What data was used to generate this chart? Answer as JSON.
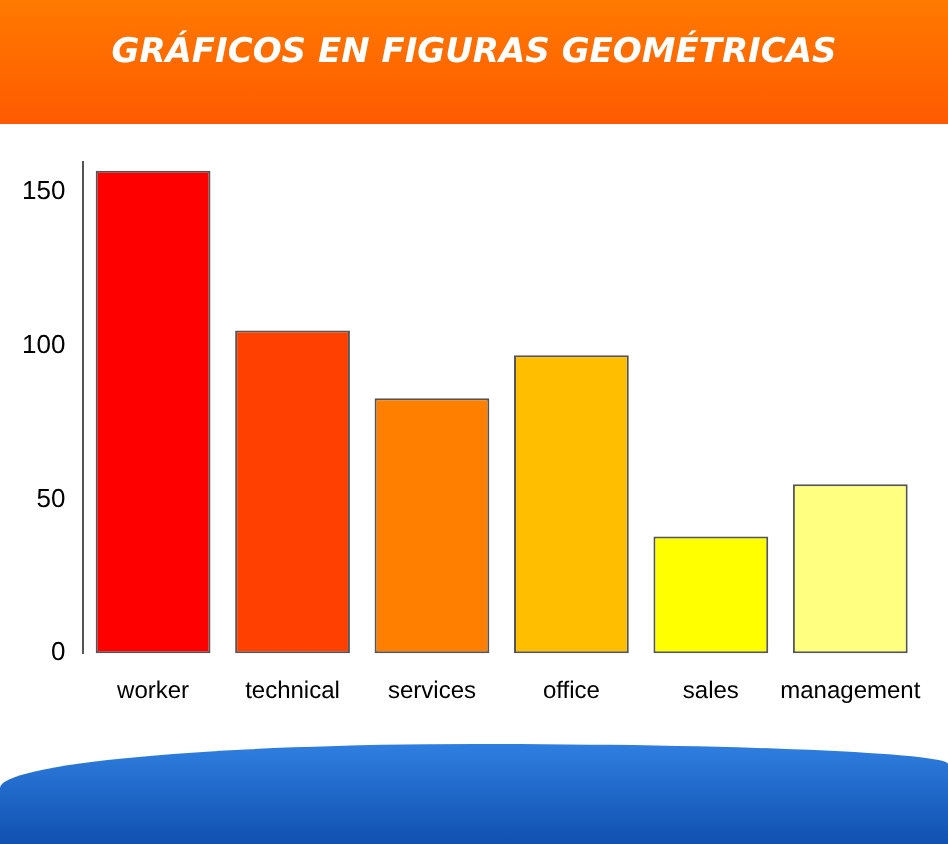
{
  "chart_data": {
    "type": "bar",
    "title": "GRÁFICOS EN FIGURAS GEOMÉTRICAS",
    "categories": [
      "worker",
      "technical",
      "services",
      "office",
      "sales",
      "management"
    ],
    "values": [
      157,
      105,
      83,
      97,
      38,
      55
    ],
    "colors": [
      "#ff0000",
      "#ff4000",
      "#ff8000",
      "#ffbf00",
      "#ffff00",
      "#ffff80"
    ],
    "ylim": [
      0,
      160
    ],
    "yticks": [
      0,
      50,
      100,
      150
    ],
    "grid": false,
    "legend": false
  }
}
